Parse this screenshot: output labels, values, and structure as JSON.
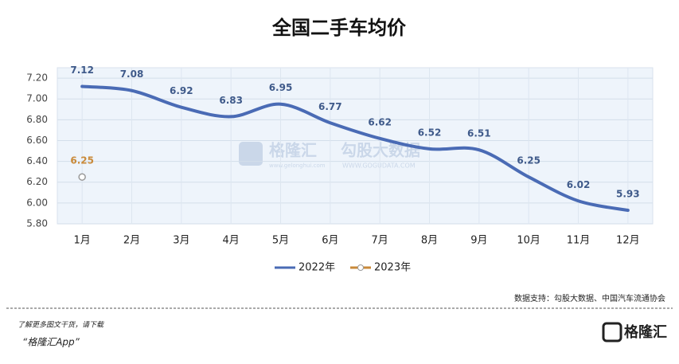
{
  "chart_data": {
    "type": "line",
    "title": "全国二手车均价",
    "categories": [
      "1月",
      "2月",
      "3月",
      "4月",
      "5月",
      "6月",
      "7月",
      "8月",
      "9月",
      "10月",
      "11月",
      "12月"
    ],
    "series": [
      {
        "name": "2022年",
        "color": "#4a6bb5",
        "values": [
          7.12,
          7.08,
          6.92,
          6.83,
          6.95,
          6.77,
          6.62,
          6.52,
          6.51,
          6.25,
          6.02,
          5.93
        ]
      },
      {
        "name": "2023年",
        "color": "#c98a3a",
        "values": [
          6.25,
          null,
          null,
          null,
          null,
          null,
          null,
          null,
          null,
          null,
          null,
          null
        ]
      }
    ],
    "ylim": [
      5.8,
      7.3
    ],
    "yticks": [
      {
        "value": 5.8,
        "label": "5.80"
      },
      {
        "value": 6,
        "label": "6.00"
      },
      {
        "value": 6.2,
        "label": "6.20"
      },
      {
        "value": 6.4,
        "label": "6.40"
      },
      {
        "value": 6.6,
        "label": "6.60"
      },
      {
        "value": 6.8,
        "label": "6.80"
      },
      {
        "value": 7,
        "label": "7.00"
      },
      {
        "value": 7.2,
        "label": "7.20"
      }
    ],
    "grid": true,
    "legend": "bottom",
    "source": "数据支持：勾股大数据、中国汽车流通协会"
  },
  "watermark": {
    "left": "格隆汇",
    "right": "勾股大数据",
    "left_url": "www.gelonghui.com",
    "right_url": "WWW.GOGUDATA.COM"
  },
  "footer": {
    "line1": "了解更多图文干货，请下载",
    "line2": "“格隆汇App”",
    "logo": "格隆汇"
  }
}
